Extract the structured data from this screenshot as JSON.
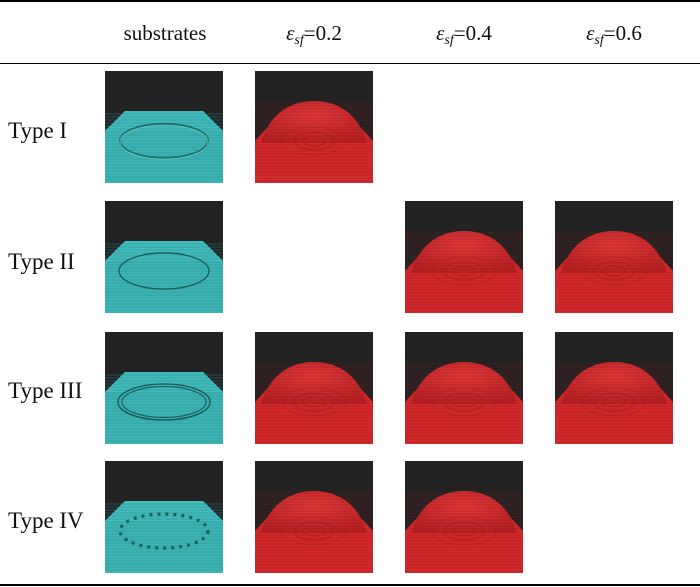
{
  "table": {
    "columns": [
      {
        "kind": "plain",
        "text": "substrates"
      },
      {
        "kind": "eps",
        "symbol": "ε",
        "sub": "sf",
        "value": "=0.2"
      },
      {
        "kind": "eps",
        "symbol": "ε",
        "sub": "sf",
        "value": "=0.4"
      },
      {
        "kind": "eps",
        "symbol": "ε",
        "sub": "sf",
        "value": "=0.6"
      }
    ],
    "rows": [
      {
        "label": "Type I",
        "pattern": "solid-ring",
        "cells": [
          "substrate",
          "droplet",
          null,
          null
        ]
      },
      {
        "label": "Type II",
        "pattern": "thin-ring",
        "cells": [
          "substrate",
          null,
          "droplet",
          "droplet"
        ]
      },
      {
        "label": "Type III",
        "pattern": "double-ring",
        "cells": [
          "substrate",
          "droplet",
          "droplet",
          "droplet"
        ]
      },
      {
        "label": "Type IV",
        "pattern": "dotted-ring",
        "cells": [
          "substrate",
          "droplet",
          "droplet",
          null
        ]
      }
    ]
  },
  "colors": {
    "background": "#222222",
    "substrate": "#3cb4b4",
    "droplet": "#d42a2c"
  }
}
